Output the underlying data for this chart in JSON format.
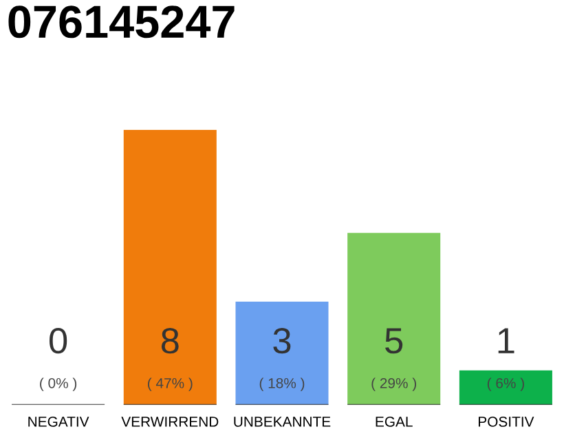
{
  "chart_data": {
    "type": "bar",
    "title": "076145247",
    "categories": [
      "NEGATIV",
      "VERWIRREND",
      "UNBEKANNTE",
      "EGAL",
      "POSITIV"
    ],
    "values": [
      0,
      8,
      3,
      5,
      1
    ],
    "colors": [
      "#888888",
      "#f07c0c",
      "#6aa0f0",
      "#7ecb5c",
      "#0db14b"
    ],
    "value_labels": [
      "0\n( 0% )",
      "8\n( 47% )",
      "3\n( 18% )",
      "5\n( 29% )",
      "1\n( 6% )"
    ],
    "grid": false,
    "legend": false
  }
}
